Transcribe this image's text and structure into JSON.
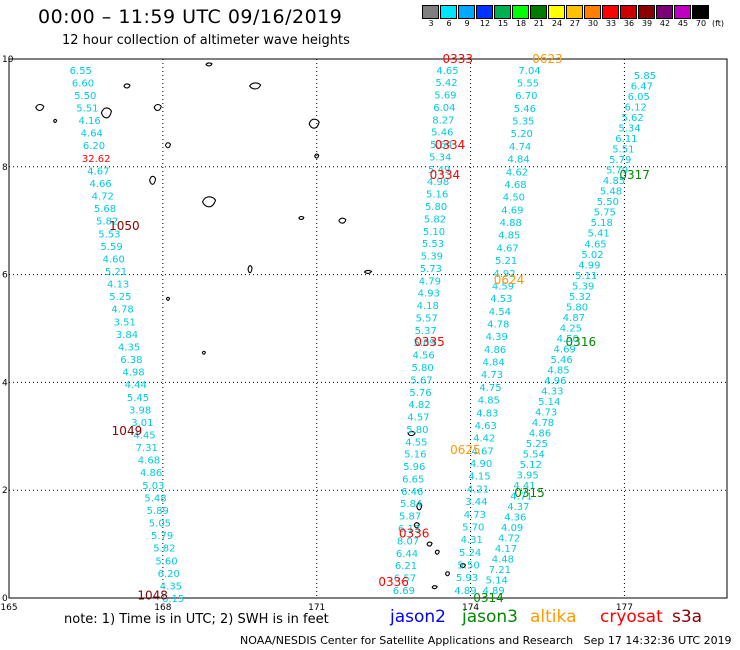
{
  "header": {
    "title": "00:00 – 11:59 UTC 09/16/2019",
    "subtitle": "12 hour collection of altimeter wave heights"
  },
  "legend": {
    "unit": "(ft)",
    "bins": [
      {
        "label": "3",
        "color": "#7f7f7f"
      },
      {
        "label": "6",
        "color": "#00e5ff"
      },
      {
        "label": "9",
        "color": "#00a8ff"
      },
      {
        "label": "12",
        "color": "#0033ff"
      },
      {
        "label": "15",
        "color": "#00b050"
      },
      {
        "label": "18",
        "color": "#00ff00"
      },
      {
        "label": "21",
        "color": "#007a00"
      },
      {
        "label": "24",
        "color": "#ffff00"
      },
      {
        "label": "27",
        "color": "#ffc000"
      },
      {
        "label": "30",
        "color": "#ff8000"
      },
      {
        "label": "33",
        "color": "#ff0000"
      },
      {
        "label": "36",
        "color": "#cc0000"
      },
      {
        "label": "39",
        "color": "#8b0000"
      },
      {
        "label": "42",
        "color": "#7a007a"
      },
      {
        "label": "45",
        "color": "#c000c0"
      },
      {
        "label": "70",
        "color": "#000000"
      }
    ]
  },
  "axes": {
    "x": {
      "min": 165,
      "max": 179,
      "ticks": [
        {
          "v": 165,
          "label": "165"
        },
        {
          "v": 168,
          "label": "168"
        },
        {
          "v": 171,
          "label": "171"
        },
        {
          "v": 174,
          "label": "174"
        },
        {
          "v": 177,
          "label": "177"
        }
      ]
    },
    "y": {
      "min": 0,
      "max": 10,
      "ticks": [
        {
          "v": 0,
          "label": "0"
        },
        {
          "v": 2,
          "label": "2"
        },
        {
          "v": 4,
          "label": "4"
        },
        {
          "v": 6,
          "label": "6"
        },
        {
          "v": 8,
          "label": "8"
        },
        {
          "v": 10,
          "label": "10"
        }
      ]
    }
  },
  "colors": {
    "swh": "#00ccdd",
    "anomaly": "#ff0000",
    "jason2": "#0000ff",
    "jason3": "#008800",
    "altika": "#ff9900",
    "cryosat": "#ff0000",
    "s3a": "#880000"
  },
  "chart_data": {
    "type": "scatter",
    "tracks": [
      {
        "id": "s3a-1048-1050",
        "color": "#00ccdd",
        "start": [
          166.4,
          9.8
        ],
        "end": [
          168.2,
          0.0
        ],
        "values": [
          "6.55",
          "6.60",
          "5.50",
          "5.51",
          "4.16",
          "4.64",
          "6.20",
          "32.62",
          "4.67",
          "4.66",
          "4.72",
          "5.68",
          "5.82",
          "5.53",
          "5.59",
          "4.60",
          "5.21",
          "4.13",
          "5.25",
          "4.78",
          "3.51",
          "3.84",
          "4.35",
          "6.38",
          "4.98",
          "4.44",
          "5.45",
          "3.98",
          "3.01",
          "4.45",
          "7.31",
          "4.68",
          "4.86",
          "5.03",
          "5.48",
          "5.89",
          "5.05",
          "5.79",
          "5.82",
          "5.60",
          "6.20",
          "4.35",
          "6.15"
        ],
        "value_colors": {
          "32.62": "#ff0000"
        }
      },
      {
        "id": "cryosat-track-A",
        "color": "#00ccdd",
        "start": [
          173.55,
          9.8
        ],
        "end": [
          172.7,
          0.15
        ],
        "values": [
          "4.65",
          "5.42",
          "5.69",
          "6.04",
          "8.27",
          "5.46",
          "5.64",
          "5.34",
          "5.49",
          "4.98",
          "5.16",
          "5.80",
          "5.82",
          "5.10",
          "5.53",
          "5.39",
          "5.73",
          "4.79",
          "4.93",
          "4.18",
          "5.57",
          "5.37",
          "5.09",
          "4.56",
          "5.80",
          "5.67",
          "5.76",
          "4.82",
          "4.57",
          "5.80",
          "4.55",
          "5.16",
          "5.96",
          "6.65",
          "6.46",
          "5.84",
          "5.87",
          "6.13",
          "8.07",
          "6.44",
          "6.21",
          "6.57",
          "6.69"
        ]
      },
      {
        "id": "cryosat-track-B",
        "color": "#00ccdd",
        "start": [
          175.15,
          9.8
        ],
        "end": [
          173.9,
          0.15
        ],
        "values": [
          "7.04",
          "5.55",
          "6.70",
          "5.46",
          "5.35",
          "5.20",
          "4.74",
          "4.84",
          "4.62",
          "4.68",
          "4.50",
          "4.69",
          "4.88",
          "4.85",
          "4.67",
          "5.21",
          "4.92",
          "4.59",
          "4.53",
          "4.54",
          "4.78",
          "4.39",
          "4.86",
          "4.84",
          "4.73",
          "4.75",
          "4.85",
          "4.83",
          "4.63",
          "4.42",
          "4.67",
          "4.90",
          "4.15",
          "4.21",
          "3.44",
          "4.73",
          "5.70",
          "4.31",
          "5.24",
          "5.50",
          "5.93",
          "4.89"
        ]
      },
      {
        "id": "jason3-0314-0317",
        "color": "#00ccdd",
        "start": [
          177.4,
          9.7
        ],
        "end": [
          174.45,
          0.15
        ],
        "values": [
          "5.85",
          "6.47",
          "6.05",
          "6.12",
          "5.62",
          "5.34",
          "6.11",
          "5.51",
          "5.79",
          "5.79",
          "4.85",
          "5.48",
          "5.50",
          "5.75",
          "5.18",
          "5.41",
          "4.65",
          "5.02",
          "4.99",
          "5.11",
          "5.39",
          "5.32",
          "5.80",
          "4.87",
          "4.25",
          "4.50",
          "4.69",
          "5.46",
          "4.85",
          "4.96",
          "4.33",
          "5.14",
          "4.73",
          "4.78",
          "4.86",
          "5.25",
          "5.54",
          "5.12",
          "3.95",
          "4.41",
          "4.71",
          "4.37",
          "4.36",
          "4.09",
          "4.72",
          "4.17",
          "4.48",
          "7.21",
          "5.14",
          "4.89"
        ]
      }
    ],
    "time_labels": [
      {
        "text": "1050",
        "lon": 167.25,
        "lat": 6.9,
        "color": "#880000"
      },
      {
        "text": "1049",
        "lon": 167.3,
        "lat": 3.1,
        "color": "#880000"
      },
      {
        "text": "1048",
        "lon": 167.8,
        "lat": 0.05,
        "color": "#880000"
      },
      {
        "text": "0333",
        "lon": 173.75,
        "lat": 10.0,
        "color": "#ff0000"
      },
      {
        "text": "0334",
        "lon": 173.6,
        "lat": 8.4,
        "color": "#ff0000"
      },
      {
        "text": "0334",
        "lon": 173.5,
        "lat": 7.85,
        "color": "#ff0000"
      },
      {
        "text": "0335",
        "lon": 173.2,
        "lat": 4.75,
        "color": "#ff0000"
      },
      {
        "text": "0336",
        "lon": 172.9,
        "lat": 1.2,
        "color": "#ff0000"
      },
      {
        "text": "0336",
        "lon": 172.5,
        "lat": 0.3,
        "color": "#ff0000"
      },
      {
        "text": "0623",
        "lon": 175.5,
        "lat": 10.0,
        "color": "#ff9900"
      },
      {
        "text": "0624",
        "lon": 174.75,
        "lat": 5.9,
        "color": "#ff9900"
      },
      {
        "text": "0625",
        "lon": 173.9,
        "lat": 2.75,
        "color": "#ff9900"
      },
      {
        "text": "0317",
        "lon": 177.2,
        "lat": 7.85,
        "color": "#008800"
      },
      {
        "text": "0316",
        "lon": 176.15,
        "lat": 4.75,
        "color": "#008800"
      },
      {
        "text": "0315",
        "lon": 175.15,
        "lat": 1.95,
        "color": "#008800"
      },
      {
        "text": "0314",
        "lon": 174.35,
        "lat": 0.0,
        "color": "#008800"
      }
    ]
  },
  "islands": [
    {
      "lon": 165.6,
      "lat": 9.1,
      "w": 8,
      "h": 6
    },
    {
      "lon": 165.9,
      "lat": 8.85,
      "w": 3,
      "h": 3
    },
    {
      "lon": 166.9,
      "lat": 9.0,
      "w": 10,
      "h": 10
    },
    {
      "lon": 167.3,
      "lat": 9.5,
      "w": 6,
      "h": 4
    },
    {
      "lon": 167.9,
      "lat": 9.1,
      "w": 7,
      "h": 6
    },
    {
      "lon": 168.1,
      "lat": 8.4,
      "w": 5,
      "h": 5
    },
    {
      "lon": 167.8,
      "lat": 7.75,
      "w": 6,
      "h": 8
    },
    {
      "lon": 168.9,
      "lat": 7.35,
      "w": 13,
      "h": 10
    },
    {
      "lon": 168.9,
      "lat": 9.9,
      "w": 6,
      "h": 3
    },
    {
      "lon": 169.8,
      "lat": 9.5,
      "w": 11,
      "h": 6
    },
    {
      "lon": 170.95,
      "lat": 8.8,
      "w": 10,
      "h": 9
    },
    {
      "lon": 171.0,
      "lat": 8.2,
      "w": 4,
      "h": 4
    },
    {
      "lon": 171.5,
      "lat": 7.0,
      "w": 7,
      "h": 5
    },
    {
      "lon": 170.7,
      "lat": 7.05,
      "w": 5,
      "h": 3
    },
    {
      "lon": 169.7,
      "lat": 6.1,
      "w": 4,
      "h": 7
    },
    {
      "lon": 172.0,
      "lat": 6.05,
      "w": 7,
      "h": 3
    },
    {
      "lon": 168.1,
      "lat": 5.55,
      "w": 3,
      "h": 3
    },
    {
      "lon": 168.8,
      "lat": 4.55,
      "w": 3,
      "h": 3
    },
    {
      "lon": 172.85,
      "lat": 3.05,
      "w": 7,
      "h": 4
    },
    {
      "lon": 173.0,
      "lat": 1.7,
      "w": 5,
      "h": 7
    },
    {
      "lon": 172.95,
      "lat": 1.35,
      "w": 5,
      "h": 5
    },
    {
      "lon": 173.2,
      "lat": 1.0,
      "w": 5,
      "h": 4
    },
    {
      "lon": 173.35,
      "lat": 0.85,
      "w": 4,
      "h": 4
    },
    {
      "lon": 173.85,
      "lat": 0.6,
      "w": 5,
      "h": 4
    },
    {
      "lon": 173.55,
      "lat": 0.45,
      "w": 4,
      "h": 4
    },
    {
      "lon": 173.3,
      "lat": 0.2,
      "w": 5,
      "h": 3
    }
  ],
  "footer": {
    "note": "note:  1) Time is in UTC;  2) SWH is in feet",
    "satellites": [
      {
        "name": "jason2",
        "color": "#0000ff",
        "left": 390
      },
      {
        "name": "jason3",
        "color": "#008800",
        "left": 462
      },
      {
        "name": "altika",
        "color": "#ff9900",
        "left": 530
      },
      {
        "name": "cryosat",
        "color": "#ff0000",
        "left": 600
      },
      {
        "name": "s3a",
        "color": "#880000",
        "left": 672
      }
    ],
    "credit": "NOAA/NESDIS Center for Satellite Applications and Research",
    "generated": "Sep 17 14:32:36 UTC 2019"
  }
}
